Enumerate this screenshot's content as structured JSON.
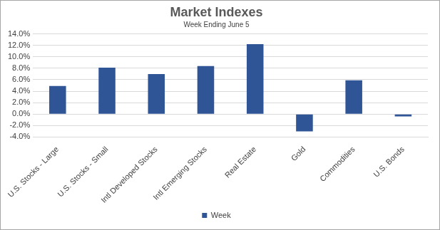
{
  "chart_data": {
    "type": "bar",
    "title": "Market Indexes",
    "subtitle": "Week Ending June 5",
    "categories": [
      "U.S. Stocks - Large",
      "U.S. Stocks - Small",
      "Intl Developed Stocks",
      "Intl Emerging Stocks",
      "Real Estate",
      "Gold",
      "Commodities",
      "U.S. Bonds"
    ],
    "series": [
      {
        "name": "Week",
        "color": "#2f5597",
        "values": [
          4.9,
          8.1,
          7.0,
          8.4,
          12.2,
          -3.0,
          5.9,
          -0.4
        ]
      }
    ],
    "ylim": [
      -4,
      14
    ],
    "yticks": [
      {
        "value": -4,
        "label": "-4.0%"
      },
      {
        "value": -2,
        "label": "-2.0%"
      },
      {
        "value": 0,
        "label": "0.0%"
      },
      {
        "value": 2,
        "label": "2.0%"
      },
      {
        "value": 4,
        "label": "4.0%"
      },
      {
        "value": 6,
        "label": "6.0%"
      },
      {
        "value": 8,
        "label": "8.0%"
      },
      {
        "value": 10,
        "label": "10.0%"
      },
      {
        "value": 12,
        "label": "12.0%"
      },
      {
        "value": 14,
        "label": "14.0%"
      }
    ],
    "grid": true,
    "legend": "bottom"
  }
}
